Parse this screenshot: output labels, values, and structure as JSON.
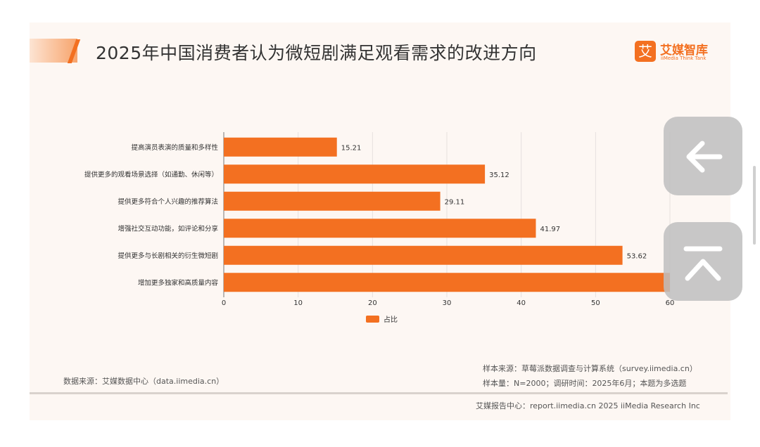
{
  "title": "2025年中国消费者认为微短剧满足观看需求的改进方向",
  "logo": {
    "mark": "艾",
    "name": "艾媒智库",
    "subtitle": "iiMedia Think Tank"
  },
  "chart_data": {
    "type": "bar",
    "orientation": "horizontal",
    "categories": [
      "提高演员表演的质量和多样性",
      "提供更多的观看场景选择（如通勤、休闲等）",
      "提供更多符合个人兴趣的推荐算法",
      "增强社交互动功能，如评论和分享",
      "提供更多与长剧相关的衍生微短剧",
      "增加更多独家和高质量内容"
    ],
    "series": [
      {
        "name": "占比",
        "values": [
          15.21,
          35.12,
          29.11,
          41.97,
          53.62,
          60
        ],
        "labels": [
          "15.21",
          "35.12",
          "29.11",
          "41.97",
          "53.62",
          ""
        ]
      }
    ],
    "xlim": [
      0,
      60
    ],
    "xticks": [
      0,
      10,
      20,
      30,
      40,
      50,
      60
    ],
    "grid": true,
    "legend_position": "bottom",
    "bar_color": "#f37021"
  },
  "footer": {
    "data_source": "数据来源：艾媒数据中心（data.iimedia.cn）",
    "sample_source": "样本来源：草莓派数据调查与计算系统（survey.iimedia.cn）",
    "sample_size": "样本量：N=2000；调研时间：2025年6月；本题为多选题",
    "report_center": "艾媒报告中心：report.iimedia.cn   2025 iiMedia Research Inc"
  },
  "nav": {
    "back_icon": "arrow-left-icon",
    "top_icon": "back-to-top-icon"
  }
}
